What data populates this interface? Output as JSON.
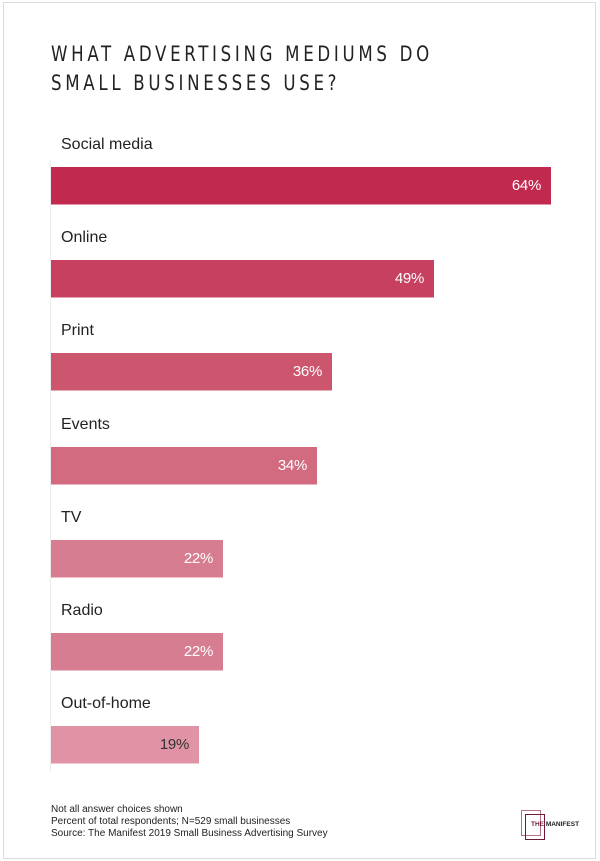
{
  "title": "What advertising mediums do small businesses use?",
  "title_lines": [
    "WHAT ADVERTISING MEDIUMS DO",
    "SMALL BUSINESSES USE?"
  ],
  "chart_data": {
    "type": "bar",
    "orientation": "horizontal",
    "title": "What advertising mediums do small businesses use?",
    "categories": [
      "Social media",
      "Online",
      "Print",
      "Events",
      "TV",
      "Radio",
      "Out-of-home"
    ],
    "values": [
      64,
      49,
      36,
      34,
      22,
      22,
      19
    ],
    "value_labels": [
      "64%",
      "49%",
      "36%",
      "34%",
      "22%",
      "22%",
      "19%"
    ],
    "unit": "%",
    "xlabel": "",
    "ylabel": "",
    "xlim": [
      0,
      64
    ],
    "grid": false,
    "legend": null,
    "colors": [
      "#c1294f",
      "#c7405f",
      "#cd566f",
      "#d26b80",
      "#d77d91",
      "#d77d91",
      "#df93a5"
    ],
    "label_colors": [
      "#ffffff",
      "#ffffff",
      "#ffffff",
      "#ffffff",
      "#ffffff",
      "#ffffff",
      "#333333"
    ]
  },
  "footnotes": [
    "Not all answer choices shown",
    "Percent of total respondents; N=529 small businesses",
    "Source: The Manifest 2019 Small Business Advertising Survey"
  ],
  "logo": {
    "part1": "THE",
    "part2": "MANIFEST"
  }
}
